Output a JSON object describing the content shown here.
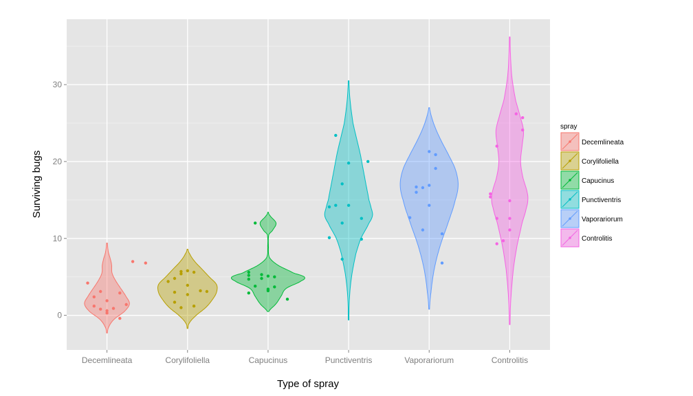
{
  "chart_data": {
    "type": "violin",
    "xlabel": "Type of spray",
    "ylabel": "Surviving bugs",
    "ylim": [
      -4.5,
      38.5
    ],
    "y_ticks": [
      0,
      10,
      20,
      30
    ],
    "grid": true,
    "legend": {
      "title": "spray",
      "placement": "right"
    },
    "categories": [
      "Decemlineata",
      "Corylifoliella",
      "Capucinus",
      "Punctiventris",
      "Vaporariorum",
      "Controlitis"
    ],
    "colors": [
      "#F8766D",
      "#B79F00",
      "#00BA38",
      "#00BFC4",
      "#619CFF",
      "#F564E3"
    ],
    "series": [
      {
        "name": "Decemlineata",
        "range": [
          -2.3,
          9.4
        ],
        "density": [
          [
            -2.3,
            0.01
          ],
          [
            -1.5,
            0.05
          ],
          [
            -0.5,
            0.2
          ],
          [
            0.5,
            0.48
          ],
          [
            1.5,
            0.62
          ],
          [
            2.5,
            0.52
          ],
          [
            3.5,
            0.38
          ],
          [
            4.5,
            0.24
          ],
          [
            5.5,
            0.14
          ],
          [
            6.5,
            0.13
          ],
          [
            7.2,
            0.1
          ],
          [
            8.2,
            0.04
          ],
          [
            9.4,
            0.01
          ]
        ],
        "points": [
          [
            0.9,
            7.0
          ],
          [
            1.1,
            6.8
          ],
          [
            0.3,
            1.2
          ],
          [
            0.4,
            0.8
          ],
          [
            0.5,
            0.6
          ],
          [
            0.6,
            0.9
          ],
          [
            0.7,
            -0.4
          ],
          [
            0.8,
            1.4
          ],
          [
            0.2,
            4.2
          ],
          [
            0.3,
            2.4
          ],
          [
            0.5,
            1.9
          ],
          [
            0.4,
            3.1
          ],
          [
            0.7,
            2.9
          ],
          [
            0.5,
            0.3
          ]
        ]
      },
      {
        "name": "Corylifoliella",
        "range": [
          -1.7,
          8.6
        ],
        "density": [
          [
            -1.7,
            0.01
          ],
          [
            -1.0,
            0.05
          ],
          [
            0.0,
            0.24
          ],
          [
            1.0,
            0.5
          ],
          [
            2.0,
            0.68
          ],
          [
            3.0,
            0.8
          ],
          [
            4.0,
            0.8
          ],
          [
            5.0,
            0.6
          ],
          [
            6.0,
            0.4
          ],
          [
            7.0,
            0.2
          ],
          [
            8.0,
            0.06
          ],
          [
            8.6,
            0.01
          ]
        ],
        "points": [
          [
            0.3,
            1.7
          ],
          [
            0.4,
            5.4
          ],
          [
            0.5,
            5.8
          ],
          [
            0.6,
            5.6
          ],
          [
            0.7,
            3.2
          ],
          [
            0.8,
            3.1
          ],
          [
            0.3,
            3.0
          ],
          [
            0.5,
            2.7
          ],
          [
            0.2,
            4.4
          ],
          [
            0.3,
            4.8
          ],
          [
            0.4,
            1.0
          ],
          [
            0.6,
            1.2
          ],
          [
            0.5,
            3.9
          ],
          [
            0.4,
            5.7
          ]
        ]
      },
      {
        "name": "Capucinus",
        "range": [
          0.5,
          13.4
        ],
        "density": [
          [
            0.5,
            0.02
          ],
          [
            1.5,
            0.22
          ],
          [
            2.5,
            0.36
          ],
          [
            3.5,
            0.5
          ],
          [
            4.5,
            0.92
          ],
          [
            5.0,
            1.0
          ],
          [
            5.5,
            0.7
          ],
          [
            6.5,
            0.28
          ],
          [
            7.5,
            0.04
          ],
          [
            9.0,
            0.01
          ],
          [
            10.5,
            0.02
          ],
          [
            11.0,
            0.12
          ],
          [
            12.0,
            0.22
          ],
          [
            13.0,
            0.05
          ],
          [
            13.4,
            0.01
          ]
        ],
        "points": [
          [
            0.3,
            12.0
          ],
          [
            0.2,
            5.2
          ],
          [
            0.6,
            5.0
          ],
          [
            0.4,
            4.8
          ],
          [
            0.5,
            3.4
          ],
          [
            0.3,
            3.8
          ],
          [
            0.2,
            5.6
          ],
          [
            0.4,
            5.3
          ],
          [
            0.2,
            4.7
          ],
          [
            0.5,
            3.2
          ],
          [
            0.8,
            2.1
          ],
          [
            0.2,
            2.9
          ],
          [
            0.6,
            3.7
          ],
          [
            0.5,
            5.1
          ]
        ]
      },
      {
        "name": "Punctiventris",
        "range": [
          -0.6,
          30.5
        ],
        "density": [
          [
            -0.6,
            0.01
          ],
          [
            2.0,
            0.02
          ],
          [
            5.0,
            0.08
          ],
          [
            8.0,
            0.2
          ],
          [
            10.0,
            0.34
          ],
          [
            12.0,
            0.56
          ],
          [
            13.0,
            0.66
          ],
          [
            14.0,
            0.62
          ],
          [
            15.0,
            0.56
          ],
          [
            17.0,
            0.48
          ],
          [
            19.0,
            0.4
          ],
          [
            21.0,
            0.32
          ],
          [
            23.0,
            0.22
          ],
          [
            25.0,
            0.12
          ],
          [
            28.0,
            0.04
          ],
          [
            30.5,
            0.01
          ]
        ],
        "points": [
          [
            0.3,
            14.3
          ],
          [
            0.2,
            10.1
          ],
          [
            0.8,
            20.0
          ],
          [
            0.4,
            7.3
          ],
          [
            0.5,
            14.3
          ],
          [
            0.7,
            12.6
          ],
          [
            0.3,
            23.4
          ],
          [
            0.4,
            17.1
          ],
          [
            0.5,
            19.8
          ],
          [
            0.4,
            12.0
          ],
          [
            0.2,
            14.1
          ],
          [
            0.7,
            9.9
          ]
        ]
      },
      {
        "name": "Vaporariorum",
        "range": [
          0.8,
          27.0
        ],
        "density": [
          [
            0.8,
            0.01
          ],
          [
            3.0,
            0.05
          ],
          [
            6.0,
            0.14
          ],
          [
            9.0,
            0.3
          ],
          [
            12.0,
            0.52
          ],
          [
            15.0,
            0.72
          ],
          [
            17.0,
            0.8
          ],
          [
            19.0,
            0.72
          ],
          [
            21.0,
            0.52
          ],
          [
            23.0,
            0.3
          ],
          [
            25.0,
            0.12
          ],
          [
            27.0,
            0.01
          ]
        ],
        "points": [
          [
            0.7,
            10.6
          ],
          [
            0.3,
            16.7
          ],
          [
            0.2,
            12.7
          ],
          [
            0.4,
            11.1
          ],
          [
            0.5,
            14.3
          ],
          [
            0.5,
            16.9
          ],
          [
            0.6,
            19.1
          ],
          [
            0.3,
            16.0
          ],
          [
            0.5,
            21.3
          ],
          [
            0.6,
            20.9
          ],
          [
            0.7,
            6.8
          ],
          [
            0.4,
            16.6
          ]
        ]
      },
      {
        "name": "Controlitis",
        "range": [
          -1.2,
          36.2
        ],
        "density": [
          [
            -1.2,
            0.01
          ],
          [
            2.0,
            0.03
          ],
          [
            6.0,
            0.1
          ],
          [
            9.0,
            0.2
          ],
          [
            12.0,
            0.34
          ],
          [
            14.0,
            0.46
          ],
          [
            15.0,
            0.5
          ],
          [
            16.0,
            0.48
          ],
          [
            18.0,
            0.36
          ],
          [
            20.0,
            0.3
          ],
          [
            22.0,
            0.34
          ],
          [
            24.0,
            0.38
          ],
          [
            26.0,
            0.28
          ],
          [
            28.0,
            0.16
          ],
          [
            31.0,
            0.06
          ],
          [
            34.0,
            0.02
          ],
          [
            36.2,
            0.01
          ]
        ],
        "points": [
          [
            0.3,
            9.3
          ],
          [
            0.4,
            9.7
          ],
          [
            0.3,
            22.0
          ],
          [
            0.7,
            24.1
          ],
          [
            0.6,
            26.2
          ],
          [
            0.2,
            15.4
          ],
          [
            0.7,
            25.7
          ],
          [
            0.5,
            14.9
          ],
          [
            0.2,
            15.8
          ],
          [
            0.3,
            12.6
          ],
          [
            0.5,
            11.1
          ],
          [
            0.5,
            12.6
          ]
        ]
      }
    ]
  }
}
